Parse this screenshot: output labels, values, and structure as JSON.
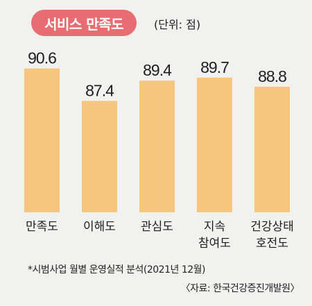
{
  "title": "서비스 만족도",
  "unit_label": "(단위: 점)",
  "footnote": "*시범사업 월별 운영실적 분석(2021년 12월)",
  "source": "〈자료: 한국건강증진개발원〉",
  "colors": {
    "bar": "#f6c57f",
    "title_pill": "#e86d72",
    "background": "#f1f1ef"
  },
  "chart_data": {
    "type": "bar",
    "categories": [
      "만족도",
      "이해도",
      "관심도",
      "지속\n참여도",
      "건강상태\n호전도"
    ],
    "values": [
      90.6,
      87.4,
      89.4,
      89.7,
      88.8
    ],
    "value_labels": [
      "90.6",
      "87.4",
      "89.4",
      "89.7",
      "88.8"
    ],
    "title": "서비스 만족도",
    "ylabel": "",
    "xlabel": "",
    "grid": false,
    "legend": "none"
  }
}
